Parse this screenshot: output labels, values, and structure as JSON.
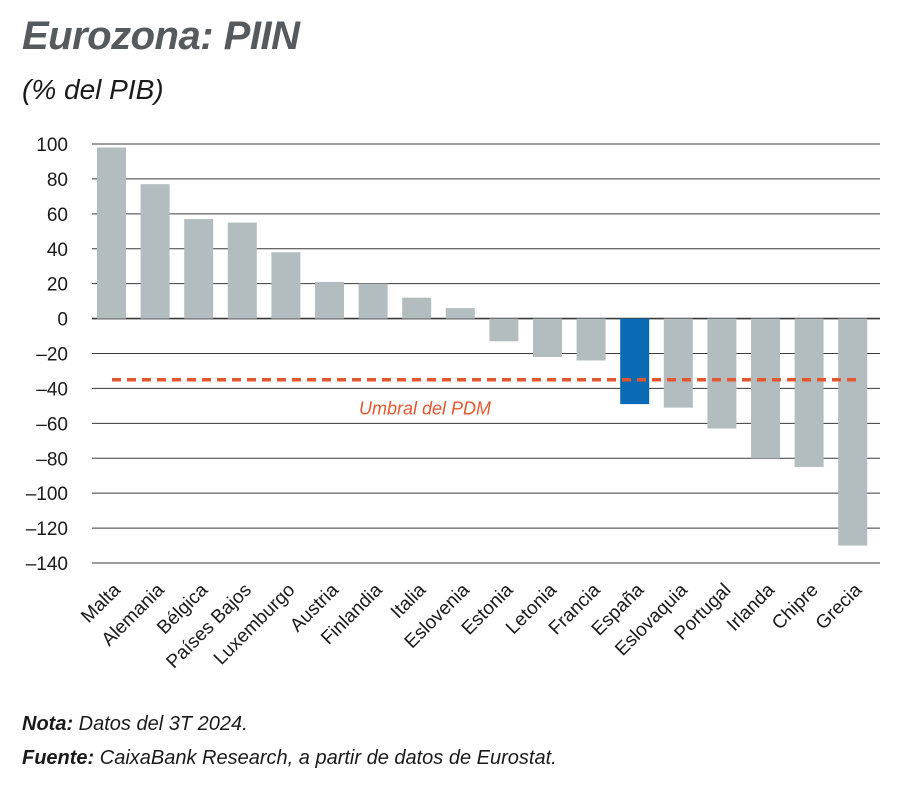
{
  "header": {
    "title": "Eurozona: PIIN",
    "subtitle": "(% del PIB)"
  },
  "footer": {
    "note_label": "Nota:",
    "note_text": "Datos del 3T 2024.",
    "source_label": "Fuente:",
    "source_text": "CaixaBank Research, a partir de datos de Eurostat."
  },
  "colors": {
    "bar_default": "#b3bdc0",
    "bar_highlight": "#0b6ab4",
    "threshold": "#e4572e",
    "grid": "#3a3a3a"
  },
  "chart_data": {
    "type": "bar",
    "title": "Eurozona: PIIN",
    "subtitle": "(% del PIB)",
    "xlabel": "",
    "ylabel": "",
    "ylim": [
      -140,
      100
    ],
    "yticks": [
      100,
      80,
      60,
      40,
      20,
      0,
      -20,
      -40,
      -60,
      -80,
      -100,
      -120,
      -140
    ],
    "grid": true,
    "categories": [
      "Malta",
      "Alemania",
      "Bélgica",
      "Países Bajos",
      "Luxemburgo",
      "Austria",
      "Finlandia",
      "Italia",
      "Eslovenia",
      "Estonia",
      "Letonia",
      "Francia",
      "España",
      "Eslovaquia",
      "Portugal",
      "Irlanda",
      "Chipre",
      "Grecia"
    ],
    "values": [
      98,
      77,
      57,
      55,
      38,
      21,
      20,
      12,
      6,
      -13,
      -22,
      -24,
      -49,
      -51,
      -63,
      -80,
      -85,
      -130
    ],
    "highlight": "España",
    "threshold": {
      "label": "Umbral del PDM",
      "value": -35
    }
  }
}
